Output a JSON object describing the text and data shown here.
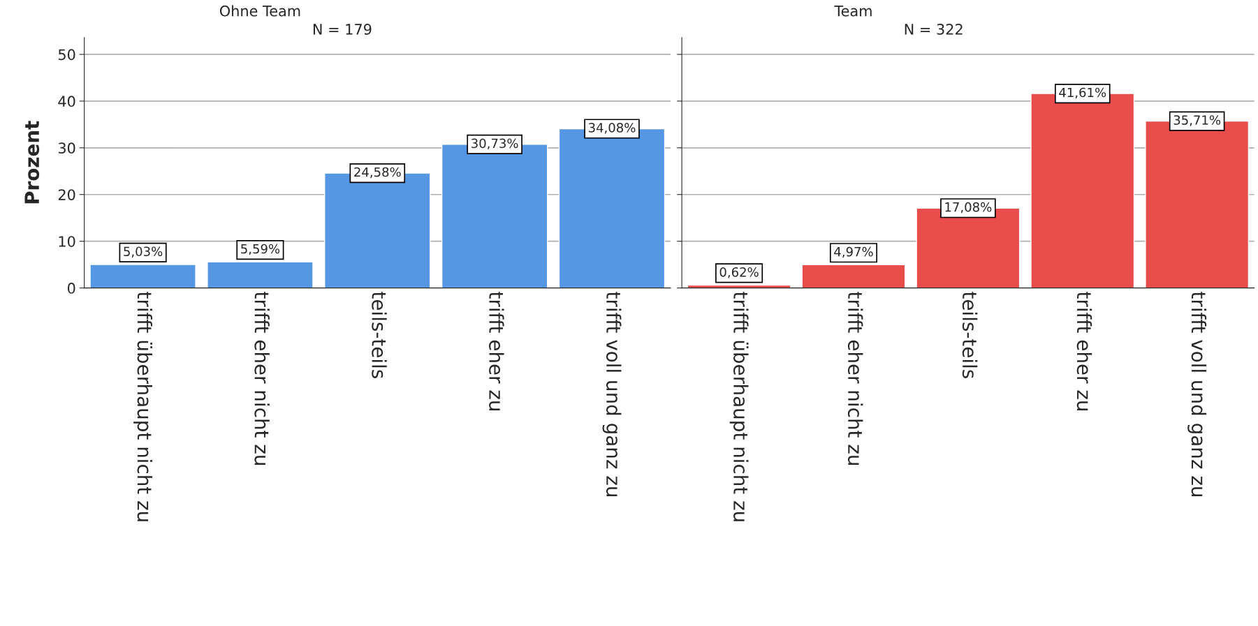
{
  "chart_data": [
    {
      "type": "bar",
      "title": "Ohne Team",
      "annotations": [
        "N = 179"
      ],
      "ylabel": "Prozent",
      "categories": [
        "trifft überhaupt nicht zu",
        "trifft eher nicht zu",
        "teils-teils",
        "trifft eher zu",
        "trifft voll und ganz zu"
      ],
      "values": [
        5.03,
        5.59,
        24.58,
        30.73,
        34.08
      ],
      "color": "#5597e3",
      "value_labels": [
        "5,03%",
        "5,59%",
        "24,58%",
        "30,73%",
        "34,08%"
      ],
      "ylim": [
        0,
        53.6
      ],
      "yticks": [
        0,
        10,
        20,
        30,
        40,
        50
      ],
      "grid": "y"
    },
    {
      "type": "bar",
      "title": "Team",
      "annotations": [
        "N = 322"
      ],
      "categories": [
        "trifft überhaupt nicht zu",
        "trifft eher nicht zu",
        "teils-teils",
        "trifft eher zu",
        "trifft voll und ganz zu"
      ],
      "values": [
        0.62,
        4.97,
        17.08,
        41.61,
        35.71
      ],
      "color": "#e84c4b",
      "value_labels": [
        "0,62%",
        "4,97%",
        "17,08%",
        "41,61%",
        "35,71%"
      ],
      "ylim": [
        0,
        53.6
      ],
      "yticks": [
        0,
        10,
        20,
        30,
        40,
        50
      ],
      "grid": "y",
      "tick_labels": "x"
    }
  ]
}
